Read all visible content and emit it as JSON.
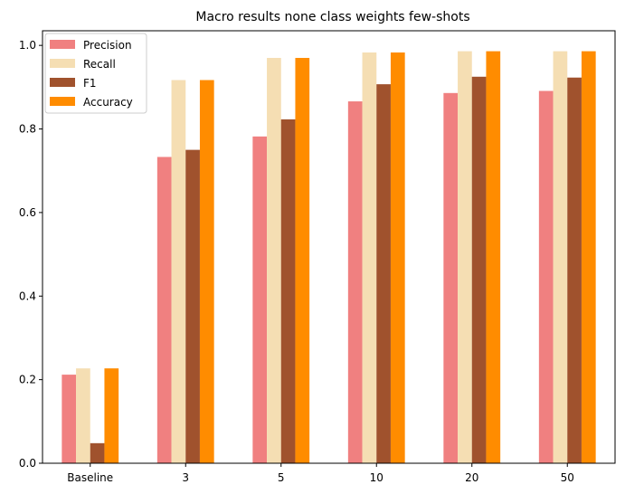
{
  "chart_data": {
    "type": "bar",
    "title": "Macro results none class weights few-shots",
    "xlabel": "",
    "ylabel": "",
    "categories": [
      "Baseline",
      "3",
      "5",
      "10",
      "20",
      "50"
    ],
    "series": [
      {
        "name": "Precision",
        "color": "#f08080",
        "values": [
          0.212,
          0.733,
          0.782,
          0.866,
          0.886,
          0.891
        ]
      },
      {
        "name": "Recall",
        "color": "#f5deb3",
        "values": [
          0.227,
          0.917,
          0.97,
          0.983,
          0.986,
          0.986
        ]
      },
      {
        "name": "F1",
        "color": "#a0522d",
        "values": [
          0.048,
          0.75,
          0.823,
          0.907,
          0.925,
          0.923
        ]
      },
      {
        "name": "Accuracy",
        "color": "#ff8c00",
        "values": [
          0.227,
          0.917,
          0.97,
          0.983,
          0.986,
          0.986
        ]
      }
    ],
    "ylim": [
      0,
      1.035
    ],
    "yticks": [
      "0.0",
      "0.2",
      "0.4",
      "0.6",
      "0.8",
      "1.0"
    ],
    "grid": false,
    "legend_position": "top-left"
  }
}
